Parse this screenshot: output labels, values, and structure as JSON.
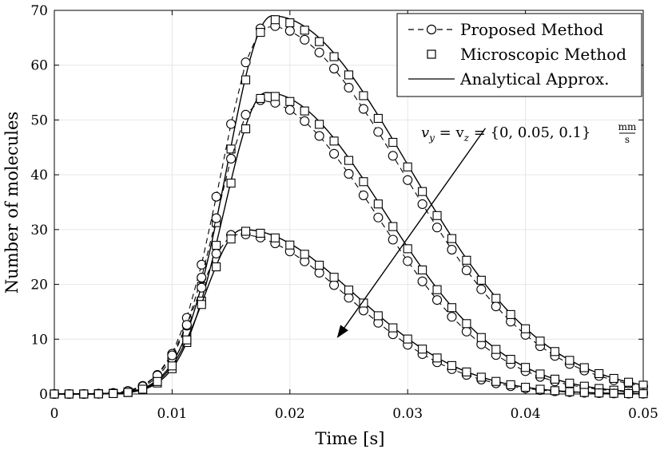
{
  "chart_data": {
    "type": "line",
    "title": "",
    "xlabel": "Time [s]",
    "ylabel": "Number of molecules",
    "xlim": [
      0,
      0.05
    ],
    "ylim": [
      0,
      70
    ],
    "x_ticks": [
      0,
      0.01,
      0.02,
      0.03,
      0.04,
      0.05
    ],
    "x_tick_labels": [
      "0",
      "0.01",
      "0.02",
      "0.03",
      "0.04",
      "0.05"
    ],
    "y_ticks": [
      0,
      10,
      20,
      30,
      40,
      50,
      60,
      70
    ],
    "y_tick_labels": [
      "0",
      "10",
      "20",
      "30",
      "40",
      "50",
      "60",
      "70"
    ],
    "grid": true,
    "legend": {
      "position": "top-right",
      "entries": [
        {
          "label": "Proposed Method",
          "style": "dashed line with circle markers"
        },
        {
          "label": "Microscopic Method",
          "style": "square markers"
        },
        {
          "label": "Analytical Approx.",
          "style": "solid line"
        }
      ]
    },
    "annotation": {
      "text": "v_y = v_z = {0, 0.05, 0.1} mm/s",
      "display_main": "v",
      "sub_y": "y",
      "mid": " = v",
      "sub_z": "z",
      "rest": " = {0, 0.05, 0.1}",
      "unit_num": "mm",
      "unit_den": "s",
      "arrow_from": [
        0.0366,
        48.5
      ],
      "arrow_to": [
        0.024,
        10.2
      ]
    },
    "curves": [
      {
        "name": "v = 0",
        "peak_time": 0.0185,
        "peak_value": 69.0,
        "rise": 0.0038,
        "fall": 0.0115,
        "onset": 0.0052,
        "proposed_shift": -0.0005,
        "micro_shift": 0.0
      },
      {
        "name": "v = 0.05",
        "peak_time": 0.018,
        "peak_value": 55.0,
        "rise": 0.0036,
        "fall": 0.01,
        "onset": 0.0052,
        "proposed_shift": -0.0006,
        "micro_shift": 0.0
      },
      {
        "name": "v = 0.1",
        "peak_time": 0.016,
        "peak_value": 30.0,
        "rise": 0.0032,
        "fall": 0.0095,
        "onset": 0.0052,
        "proposed_shift": -0.0006,
        "micro_shift": 0.0
      }
    ],
    "proposed_x": [
      0,
      0.00125,
      0.0025,
      0.00375,
      0.005,
      0.00625,
      0.0075,
      0.00875,
      0.01,
      0.01125,
      0.0125,
      0.01375,
      0.015,
      0.01625,
      0.0175,
      0.01875,
      0.02,
      0.02125,
      0.0225,
      0.02375,
      0.025,
      0.02625,
      0.0275,
      0.02875,
      0.03,
      0.03125,
      0.0325,
      0.03375,
      0.035,
      0.03625,
      0.0375,
      0.03875,
      0.04,
      0.04125,
      0.0425,
      0.04375,
      0.045,
      0.04625,
      0.0475,
      0.04875,
      0.05
    ],
    "micro_x": [
      0,
      0.00125,
      0.0025,
      0.00375,
      0.005,
      0.00625,
      0.0075,
      0.00875,
      0.01,
      0.01125,
      0.0125,
      0.01375,
      0.015,
      0.01625,
      0.0175,
      0.01875,
      0.02,
      0.02125,
      0.0225,
      0.02375,
      0.025,
      0.02625,
      0.0275,
      0.02875,
      0.03,
      0.03125,
      0.0325,
      0.03375,
      0.035,
      0.03625,
      0.0375,
      0.03875,
      0.04,
      0.04125,
      0.0425,
      0.04375,
      0.045,
      0.04625,
      0.0475,
      0.04875,
      0.05
    ]
  }
}
